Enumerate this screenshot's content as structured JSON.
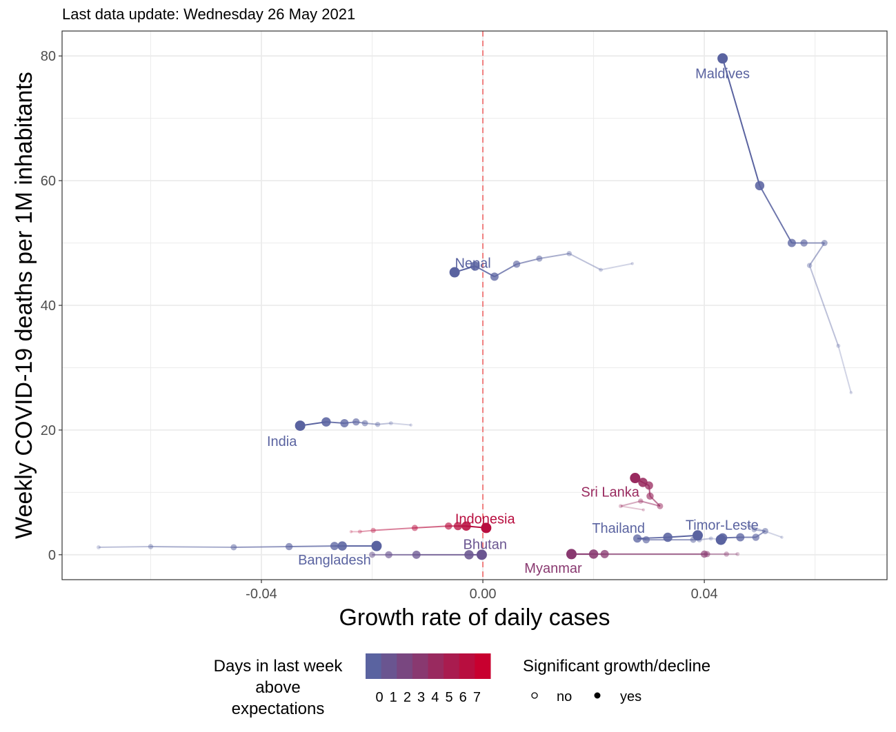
{
  "subtitle": "Last data update: Wednesday 26 May 2021",
  "chart_data": {
    "type": "scatter",
    "xlabel": "Growth rate of daily cases",
    "ylabel": "Weekly COVID-19 deaths per 1M inhabitants",
    "xlim": [
      -0.076,
      0.073
    ],
    "ylim": [
      -4,
      84
    ],
    "x_ticks": [
      -0.04,
      0.0,
      0.04
    ],
    "x_tick_labels": [
      "-0.04",
      "0.00",
      "0.04"
    ],
    "y_ticks": [
      0,
      20,
      40,
      60,
      80
    ],
    "y_tick_labels": [
      "0",
      "20",
      "40",
      "60",
      "80"
    ],
    "grid": true,
    "reference_line": {
      "x": 0,
      "style": "dashed",
      "color": "#f08080"
    },
    "colors": {
      "low": "#5a63a0",
      "high": "#c8002f"
    },
    "series": [
      {
        "name": "Maldives",
        "days_above": 0,
        "label_pos": [
          0.0433,
          77.2
        ],
        "points": [
          [
            0.0433,
            79.6
          ],
          [
            0.05,
            59.2
          ],
          [
            0.0558,
            50.0
          ],
          [
            0.058,
            50.0
          ],
          [
            0.0617,
            50.0
          ],
          [
            0.059,
            46.4
          ],
          [
            0.0642,
            33.5
          ],
          [
            0.0665,
            26.0
          ]
        ]
      },
      {
        "name": "Nepal",
        "days_above": 0,
        "label_pos": [
          -0.0018,
          46.8
        ],
        "points": [
          [
            -0.0051,
            45.3
          ],
          [
            -0.0014,
            46.3
          ],
          [
            0.0021,
            44.6
          ],
          [
            0.0061,
            46.6
          ],
          [
            0.0102,
            47.5
          ],
          [
            0.0156,
            48.3
          ],
          [
            0.0213,
            45.7
          ],
          [
            0.027,
            46.7
          ]
        ]
      },
      {
        "name": "India",
        "days_above": 0,
        "label_pos": [
          -0.0363,
          18.2
        ],
        "points": [
          [
            -0.033,
            20.7
          ],
          [
            -0.0283,
            21.3
          ],
          [
            -0.025,
            21.1
          ],
          [
            -0.0229,
            21.3
          ],
          [
            -0.0213,
            21.1
          ],
          [
            -0.019,
            20.9
          ],
          [
            -0.0166,
            21.1
          ],
          [
            -0.013,
            20.8
          ]
        ]
      },
      {
        "name": "Sri Lanka",
        "days_above": 4,
        "label_pos": [
          0.023,
          10.1
        ],
        "points": [
          [
            0.0275,
            12.3
          ],
          [
            0.0289,
            11.6
          ],
          [
            0.03,
            11.1
          ],
          [
            0.0302,
            9.4
          ],
          [
            0.032,
            7.8
          ],
          [
            0.0285,
            8.6
          ],
          [
            0.0249,
            7.8
          ],
          [
            0.029,
            7.2
          ]
        ]
      },
      {
        "name": "Indonesia",
        "days_above": 6,
        "label_pos": [
          0.0004,
          5.8
        ],
        "points": [
          [
            0.0006,
            4.3
          ],
          [
            -0.003,
            4.6
          ],
          [
            -0.0045,
            4.6
          ],
          [
            -0.0062,
            4.6
          ],
          [
            -0.0123,
            4.3
          ],
          [
            -0.0198,
            3.9
          ],
          [
            -0.0222,
            3.7
          ],
          [
            -0.0238,
            3.7
          ]
        ]
      },
      {
        "name": "Thailand",
        "days_above": 0,
        "label_pos": [
          0.0245,
          4.3
        ],
        "points": [
          [
            0.0388,
            3.1
          ],
          [
            0.0334,
            2.8
          ],
          [
            0.0279,
            2.6
          ],
          [
            0.0295,
            2.4
          ],
          [
            0.038,
            2.4
          ],
          [
            0.0391,
            2.4
          ],
          [
            0.0412,
            2.6
          ],
          [
            0.0424,
            2.5
          ]
        ]
      },
      {
        "name": "Timor-Leste",
        "days_above": 0,
        "label_pos": [
          0.0432,
          4.8
        ],
        "points": [
          [
            0.043,
            2.4
          ],
          [
            0.0433,
            2.7
          ],
          [
            0.0465,
            2.8
          ],
          [
            0.0493,
            2.8
          ],
          [
            0.051,
            3.8
          ],
          [
            0.049,
            4.0
          ],
          [
            0.048,
            4.7
          ],
          [
            0.054,
            2.8
          ]
        ]
      },
      {
        "name": "Bangladesh",
        "days_above": 0,
        "label_pos": [
          -0.0268,
          -0.8
        ],
        "points": [
          [
            -0.0192,
            1.4
          ],
          [
            -0.0254,
            1.4
          ],
          [
            -0.0268,
            1.4
          ],
          [
            -0.035,
            1.3
          ],
          [
            -0.045,
            1.2
          ],
          [
            -0.06,
            1.3
          ],
          [
            -0.0694,
            1.2
          ]
        ]
      },
      {
        "name": "Bhutan",
        "days_above": 1,
        "label_pos": [
          0.0004,
          1.7
        ],
        "points": [
          [
            -0.0002,
            0.0
          ],
          [
            -0.0025,
            0.0
          ],
          [
            -0.012,
            0.0
          ],
          [
            -0.017,
            0.0
          ],
          [
            -0.02,
            0.0
          ]
        ]
      },
      {
        "name": "Myanmar",
        "days_above": 3,
        "label_pos": [
          0.0127,
          -2.1
        ],
        "points": [
          [
            0.016,
            0.1
          ],
          [
            0.02,
            0.1
          ],
          [
            0.022,
            0.1
          ],
          [
            0.04,
            0.1
          ],
          [
            0.0405,
            0.1
          ],
          [
            0.044,
            0.1
          ],
          [
            0.046,
            0.1
          ]
        ]
      }
    ],
    "legend": {
      "color_title": "Days in last week above expectations",
      "color_title_lines": [
        "Days in last week",
        "above",
        "expectations"
      ],
      "color_labels": [
        "0",
        "1",
        "2",
        "3",
        "4",
        "5",
        "6",
        "7"
      ],
      "shape_title": "Significant growth/decline",
      "shape_labels": [
        "no",
        "yes"
      ]
    }
  }
}
